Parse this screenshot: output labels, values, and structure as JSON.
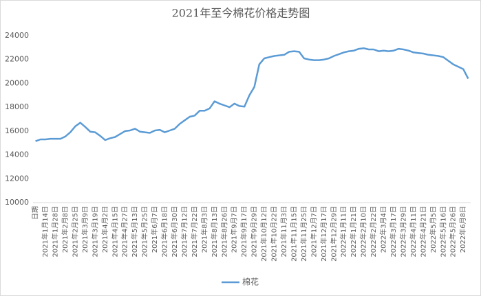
{
  "chart_data": {
    "type": "line",
    "title": "2021年至今棉花价格走势图",
    "categories": [
      "日期",
      null,
      "2021年1月14日",
      null,
      "2021年1月28日",
      null,
      "2021年2月8日",
      null,
      "2021年2月25日",
      null,
      "2021年3月9日",
      null,
      "2021年3月19日",
      null,
      "2021年4月2日",
      null,
      "2021年4月15日",
      null,
      "2021年4月27日",
      null,
      "2021年5月13日",
      null,
      "2021年5月25日",
      null,
      "2021年6月7日",
      null,
      "2021年6月18日",
      null,
      "2021年6月30日",
      null,
      "2021年7月12日",
      null,
      "2021年7月22日",
      null,
      "2021年8月3日",
      null,
      "2021年8月13日",
      null,
      "2021年8月26日",
      null,
      "2021年9月7日",
      null,
      "2021年9月17日",
      null,
      "2021年9月29日",
      null,
      "2021年10月12日",
      null,
      "2021年10月22日",
      null,
      "2021年11月3日",
      null,
      "2021年11月15日",
      null,
      "2021年11月25日",
      null,
      "2021年12月7日",
      null,
      "2021年12月17日",
      null,
      "2021年12月29日",
      null,
      "2022年1月11日",
      null,
      "2022年1月21日",
      null,
      "2022年2月10日",
      null,
      "2022年2月22日",
      null,
      "2022年3月4日",
      null,
      "2022年3月17日",
      null,
      "2022年3月29日",
      null,
      "2022年4月11日",
      null,
      "2022年4月21日",
      null,
      "2022年5月5日",
      null,
      "2022年5月16日",
      null,
      "2022年5月26日",
      null,
      "2022年6月8日",
      null
    ],
    "series": [
      {
        "name": "棉花",
        "color": "#5b9bd5",
        "values": [
          15150,
          15300,
          15300,
          15350,
          15350,
          15350,
          15550,
          15900,
          16400,
          16700,
          16350,
          15950,
          15900,
          15600,
          15250,
          15400,
          15500,
          15750,
          16000,
          16050,
          16200,
          15950,
          15900,
          15850,
          16050,
          16100,
          15900,
          16050,
          16200,
          16600,
          16900,
          17200,
          17300,
          17700,
          17700,
          17900,
          18500,
          18300,
          18150,
          18000,
          18300,
          18100,
          18050,
          19000,
          19700,
          21600,
          22100,
          22200,
          22300,
          22350,
          22400,
          22650,
          22700,
          22650,
          22100,
          22000,
          21950,
          21950,
          22000,
          22100,
          22300,
          22450,
          22600,
          22700,
          22750,
          22900,
          22950,
          22850,
          22850,
          22700,
          22750,
          22700,
          22750,
          22900,
          22850,
          22750,
          22600,
          22550,
          22500,
          22400,
          22350,
          22300,
          22200,
          21900,
          21600,
          21400,
          21200,
          20400
        ]
      }
    ],
    "ylim": [
      10000,
      24000
    ],
    "yticks": [
      10000,
      12000,
      14000,
      16000,
      18000,
      20000,
      22000,
      24000
    ],
    "grid": false,
    "legend": "bottom"
  }
}
